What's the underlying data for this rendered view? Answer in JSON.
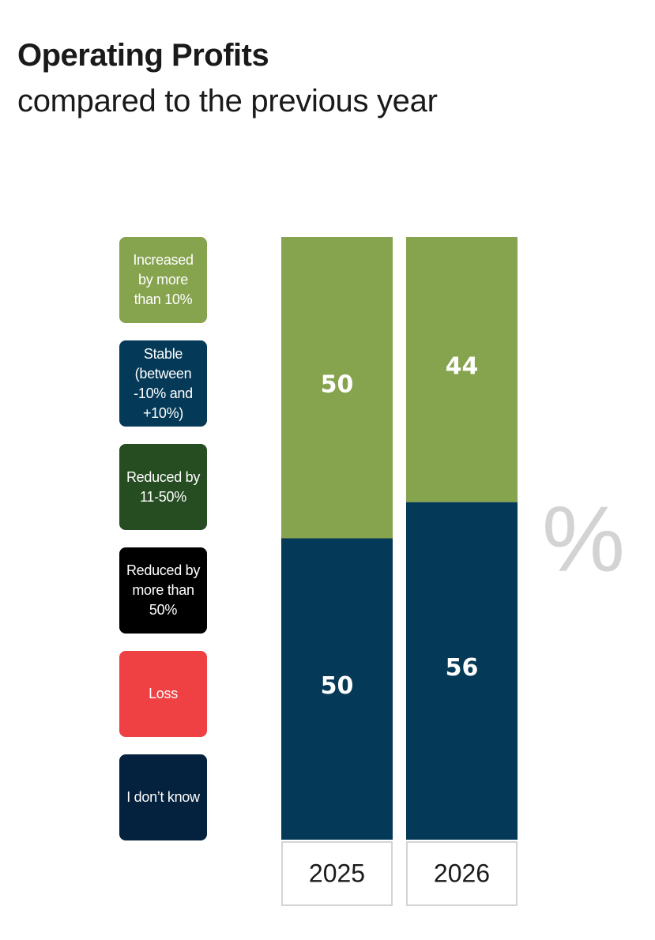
{
  "header": {
    "title": "Operating Profits",
    "subtitle": "compared to the previous year"
  },
  "unit_label": "%",
  "legend": [
    {
      "label": "Increased by more than 10%",
      "lines": [
        "Increased",
        "by more",
        "than 10%"
      ],
      "color": "#86a34e"
    },
    {
      "label": "Stable (between -10% and +10%)",
      "lines": [
        "Stable",
        "(between",
        "-10% and",
        "+10%)"
      ],
      "color": "#043957"
    },
    {
      "label": "Reduced by 11-50%",
      "lines": [
        "Reduced by",
        "11-50%"
      ],
      "color": "#264c22"
    },
    {
      "label": "Reduced by more than 50%",
      "lines": [
        "Reduced by",
        "more than",
        "50%"
      ],
      "color": "#000000"
    },
    {
      "label": "Loss",
      "lines": [
        "Loss"
      ],
      "color": "#ef4043"
    },
    {
      "label": "I don’t know",
      "lines": [
        "I don’t know"
      ],
      "color": "#04213d"
    }
  ],
  "chart_data": {
    "type": "bar",
    "stacked": true,
    "unit": "%",
    "categories": [
      "2025",
      "2026"
    ],
    "series": [
      {
        "name": "Increased by more than 10%",
        "color": "#86a34e",
        "values": [
          50,
          44
        ]
      },
      {
        "name": "Stable (between -10% and +10%)",
        "color": "#043957",
        "values": [
          50,
          56
        ]
      }
    ],
    "ylim": [
      0,
      100
    ]
  }
}
